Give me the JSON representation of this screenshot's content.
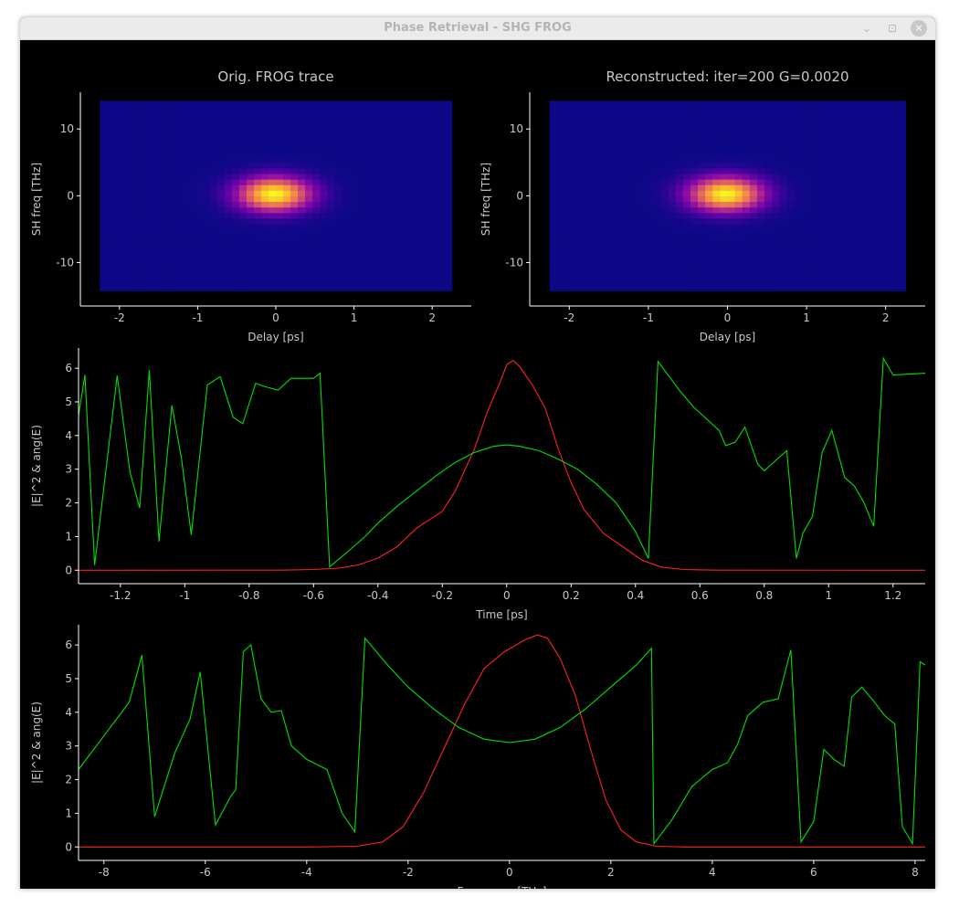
{
  "window": {
    "title": "Phase Retrieval - SHG FROG",
    "buttons": {
      "minimize": "⌄",
      "maximize": "⊡",
      "close": "×"
    }
  },
  "colors": {
    "amplitude": "#ff2020",
    "phase": "#00e000",
    "background": "#000000",
    "axis": "#ffffff"
  },
  "chart_data": [
    {
      "type": "heatmap",
      "title": "Orig. FROG trace",
      "xlabel": "Delay [ps]",
      "ylabel": "SH freq [THz]",
      "xlim": [
        -2.5,
        2.5
      ],
      "ylim": [
        -16.5,
        15.5
      ],
      "extent": {
        "x": [
          -2.25,
          2.25
        ],
        "y": [
          -14.2,
          14.2
        ]
      },
      "xticks": [
        -2,
        -1,
        0,
        1,
        2
      ],
      "yticks": [
        -10,
        0,
        10
      ],
      "peak": {
        "x": -0.02,
        "y": 0.3
      },
      "sigma": {
        "x": 0.32,
        "y": 1.75
      },
      "colormap": "plasma"
    },
    {
      "type": "heatmap",
      "title": "Reconstructed: iter=200 G=0.0020",
      "xlabel": "Delay [ps]",
      "ylabel": "SH freq [THz]",
      "xlim": [
        -2.5,
        2.5
      ],
      "ylim": [
        -16.5,
        15.5
      ],
      "extent": {
        "x": [
          -2.25,
          2.25
        ],
        "y": [
          -14.2,
          14.2
        ]
      },
      "xticks": [
        -2,
        -1,
        0,
        1,
        2
      ],
      "yticks": [
        -10,
        0,
        10
      ],
      "peak": {
        "x": -0.02,
        "y": 0.3
      },
      "sigma": {
        "x": 0.32,
        "y": 1.75
      },
      "colormap": "plasma"
    },
    {
      "type": "line",
      "xlabel": "Time [ps]",
      "ylabel": "|E|^2 & ang(E)",
      "xlim": [
        -1.33,
        1.3
      ],
      "ylim": [
        -0.4,
        6.6
      ],
      "xticks": [
        -1.2,
        -1,
        -0.8,
        -0.6,
        -0.4,
        -0.2,
        0,
        0.2,
        0.4,
        0.6,
        0.8,
        1,
        1.2
      ],
      "yticks": [
        0,
        1,
        2,
        3,
        4,
        5,
        6
      ],
      "series": [
        {
          "color": "#ff2020",
          "points": [
            [
              -1.33,
              0
            ],
            [
              -0.7,
              0.001
            ],
            [
              -0.6,
              0.02
            ],
            [
              -0.52,
              0.06
            ],
            [
              -0.46,
              0.16
            ],
            [
              -0.4,
              0.36
            ],
            [
              -0.34,
              0.7
            ],
            [
              -0.28,
              1.25
            ],
            [
              -0.2,
              1.75
            ],
            [
              -0.16,
              2.35
            ],
            [
              -0.1,
              3.6
            ],
            [
              -0.06,
              4.7
            ],
            [
              -0.02,
              5.6
            ],
            [
              0,
              6.1
            ],
            [
              0.02,
              6.23
            ],
            [
              0.04,
              6.05
            ],
            [
              0.08,
              5.5
            ],
            [
              0.12,
              4.8
            ],
            [
              0.16,
              3.6
            ],
            [
              0.2,
              2.6
            ],
            [
              0.24,
              1.8
            ],
            [
              0.3,
              1.1
            ],
            [
              0.36,
              0.7
            ],
            [
              0.42,
              0.3
            ],
            [
              0.48,
              0.09
            ],
            [
              0.55,
              0.02
            ],
            [
              0.65,
              0.002
            ],
            [
              1.3,
              0
            ]
          ]
        },
        {
          "color": "#00e000",
          "points": [
            [
              -1.33,
              4.6
            ],
            [
              -1.31,
              5.8
            ],
            [
              -1.28,
              0.15
            ],
            [
              -1.21,
              5.78
            ],
            [
              -1.17,
              2.9
            ],
            [
              -1.14,
              1.85
            ],
            [
              -1.11,
              5.95
            ],
            [
              -1.08,
              0.85
            ],
            [
              -1.04,
              4.9
            ],
            [
              -1.01,
              3.3
            ],
            [
              -0.98,
              1.05
            ],
            [
              -0.93,
              5.5
            ],
            [
              -0.89,
              5.75
            ],
            [
              -0.85,
              4.55
            ],
            [
              -0.82,
              4.35
            ],
            [
              -0.78,
              5.55
            ],
            [
              -0.75,
              5.45
            ],
            [
              -0.71,
              5.35
            ],
            [
              -0.67,
              5.7
            ],
            [
              -0.63,
              5.7
            ],
            [
              -0.6,
              5.7
            ],
            [
              -0.58,
              5.85
            ],
            [
              -0.55,
              0.1
            ],
            [
              -0.5,
              0.5
            ],
            [
              -0.44,
              1.0
            ],
            [
              -0.4,
              1.4
            ],
            [
              -0.34,
              1.9
            ],
            [
              -0.28,
              2.35
            ],
            [
              -0.22,
              2.8
            ],
            [
              -0.16,
              3.2
            ],
            [
              -0.1,
              3.5
            ],
            [
              -0.04,
              3.68
            ],
            [
              0,
              3.72
            ],
            [
              0.04,
              3.68
            ],
            [
              0.1,
              3.55
            ],
            [
              0.16,
              3.3
            ],
            [
              0.22,
              3.0
            ],
            [
              0.28,
              2.55
            ],
            [
              0.34,
              2.0
            ],
            [
              0.4,
              1.15
            ],
            [
              0.44,
              0.35
            ],
            [
              0.47,
              6.2
            ],
            [
              0.54,
              5.3
            ],
            [
              0.58,
              4.85
            ],
            [
              0.62,
              4.5
            ],
            [
              0.66,
              4.15
            ],
            [
              0.68,
              3.7
            ],
            [
              0.71,
              3.8
            ],
            [
              0.74,
              4.25
            ],
            [
              0.78,
              3.15
            ],
            [
              0.8,
              2.95
            ],
            [
              0.84,
              3.3
            ],
            [
              0.87,
              3.55
            ],
            [
              0.9,
              0.35
            ],
            [
              0.92,
              1.1
            ],
            [
              0.95,
              1.6
            ],
            [
              0.98,
              3.5
            ],
            [
              1.01,
              4.15
            ],
            [
              1.05,
              2.75
            ],
            [
              1.08,
              2.5
            ],
            [
              1.11,
              2.0
            ],
            [
              1.14,
              1.3
            ],
            [
              1.17,
              6.3
            ],
            [
              1.2,
              5.8
            ],
            [
              1.3,
              5.85
            ]
          ]
        }
      ]
    },
    {
      "type": "line",
      "xlabel": "Frequency [THz]",
      "ylabel": "|E|^2 & ang(E)",
      "xlim": [
        -8.5,
        8.2
      ],
      "ylim": [
        -0.4,
        6.6
      ],
      "xticks": [
        -8,
        -6,
        -4,
        -2,
        0,
        2,
        4,
        6,
        8
      ],
      "yticks": [
        0,
        1,
        2,
        3,
        4,
        5,
        6
      ],
      "series": [
        {
          "color": "#ff2020",
          "points": [
            [
              -8.5,
              0
            ],
            [
              -4,
              0
            ],
            [
              -3,
              0.02
            ],
            [
              -2.5,
              0.15
            ],
            [
              -2.1,
              0.6
            ],
            [
              -1.7,
              1.6
            ],
            [
              -1.3,
              2.9
            ],
            [
              -0.9,
              4.2
            ],
            [
              -0.5,
              5.3
            ],
            [
              -0.1,
              5.8
            ],
            [
              0.3,
              6.15
            ],
            [
              0.55,
              6.3
            ],
            [
              0.75,
              6.2
            ],
            [
              1.0,
              5.6
            ],
            [
              1.3,
              4.5
            ],
            [
              1.6,
              2.9
            ],
            [
              1.9,
              1.4
            ],
            [
              2.2,
              0.5
            ],
            [
              2.5,
              0.15
            ],
            [
              2.9,
              0.02
            ],
            [
              3.5,
              0
            ],
            [
              8.2,
              0
            ]
          ]
        },
        {
          "color": "#00e000",
          "points": [
            [
              -8.5,
              2.3
            ],
            [
              -8.0,
              3.3
            ],
            [
              -7.5,
              4.3
            ],
            [
              -7.25,
              5.7
            ],
            [
              -7.0,
              0.9
            ],
            [
              -6.6,
              2.8
            ],
            [
              -6.3,
              3.8
            ],
            [
              -6.1,
              5.2
            ],
            [
              -5.8,
              0.65
            ],
            [
              -5.5,
              1.5
            ],
            [
              -5.4,
              1.7
            ],
            [
              -5.25,
              5.8
            ],
            [
              -5.1,
              6.0
            ],
            [
              -4.9,
              4.4
            ],
            [
              -4.7,
              4.0
            ],
            [
              -4.5,
              4.05
            ],
            [
              -4.3,
              3.0
            ],
            [
              -4.0,
              2.6
            ],
            [
              -3.6,
              2.3
            ],
            [
              -3.3,
              1.0
            ],
            [
              -3.05,
              0.45
            ],
            [
              -2.85,
              6.2
            ],
            [
              -2.4,
              5.4
            ],
            [
              -2.0,
              4.75
            ],
            [
              -1.5,
              4.1
            ],
            [
              -1.0,
              3.55
            ],
            [
              -0.5,
              3.2
            ],
            [
              0,
              3.1
            ],
            [
              0.5,
              3.2
            ],
            [
              1.0,
              3.55
            ],
            [
              1.5,
              4.1
            ],
            [
              2.0,
              4.75
            ],
            [
              2.5,
              5.4
            ],
            [
              2.8,
              5.9
            ],
            [
              2.85,
              0.1
            ],
            [
              3.2,
              0.8
            ],
            [
              3.6,
              1.8
            ],
            [
              4.0,
              2.3
            ],
            [
              4.3,
              2.5
            ],
            [
              4.5,
              3.05
            ],
            [
              4.7,
              3.9
            ],
            [
              5.0,
              4.3
            ],
            [
              5.3,
              4.4
            ],
            [
              5.55,
              5.85
            ],
            [
              5.75,
              0.15
            ],
            [
              6.0,
              0.75
            ],
            [
              6.2,
              2.9
            ],
            [
              6.4,
              2.6
            ],
            [
              6.6,
              2.4
            ],
            [
              6.75,
              4.45
            ],
            [
              6.95,
              4.75
            ],
            [
              7.2,
              4.3
            ],
            [
              7.4,
              3.9
            ],
            [
              7.6,
              3.65
            ],
            [
              7.75,
              0.6
            ],
            [
              7.95,
              0.1
            ],
            [
              8.1,
              5.5
            ],
            [
              8.2,
              5.4
            ]
          ]
        }
      ]
    }
  ]
}
